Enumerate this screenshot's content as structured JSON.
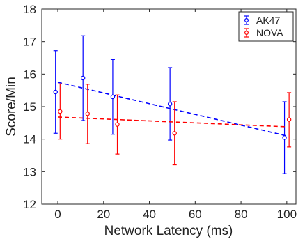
{
  "chart_data": {
    "type": "scatter",
    "xlabel": "Network Latency (ms)",
    "ylabel": "Score/Min",
    "xlim": [
      -7,
      104
    ],
    "ylim": [
      12,
      18
    ],
    "xticks": [
      0,
      20,
      40,
      60,
      80,
      100
    ],
    "yticks": [
      12,
      13,
      14,
      15,
      16,
      17,
      18
    ],
    "grid": false,
    "legend_position": "top-right",
    "series": [
      {
        "name": "AK47",
        "color": "#0000ff",
        "marker": "circle",
        "error_bars": true,
        "points": [
          {
            "x": -1,
            "y": 15.45,
            "low": 14.18,
            "high": 16.72
          },
          {
            "x": 11,
            "y": 15.88,
            "low": 14.57,
            "high": 17.18
          },
          {
            "x": 24,
            "y": 15.3,
            "low": 14.15,
            "high": 16.45
          },
          {
            "x": 49,
            "y": 15.08,
            "low": 13.97,
            "high": 16.2
          },
          {
            "x": 99,
            "y": 14.05,
            "low": 12.94,
            "high": 15.15
          }
        ],
        "trend": {
          "style": "dashed",
          "x": [
            0,
            100
          ],
          "y": [
            15.75,
            14.1
          ]
        }
      },
      {
        "name": "NOVA",
        "color": "#ff0000",
        "marker": "circle",
        "error_bars": true,
        "points": [
          {
            "x": 1,
            "y": 14.85,
            "low": 14.0,
            "high": 15.7
          },
          {
            "x": 13,
            "y": 14.78,
            "low": 13.86,
            "high": 15.69
          },
          {
            "x": 26,
            "y": 14.45,
            "low": 13.54,
            "high": 15.36
          },
          {
            "x": 51,
            "y": 14.18,
            "low": 13.21,
            "high": 15.15
          },
          {
            "x": 101,
            "y": 14.6,
            "low": 13.76,
            "high": 15.43
          }
        ],
        "trend": {
          "style": "dashed",
          "x": [
            0,
            100
          ],
          "y": [
            14.68,
            14.38
          ]
        }
      }
    ]
  }
}
